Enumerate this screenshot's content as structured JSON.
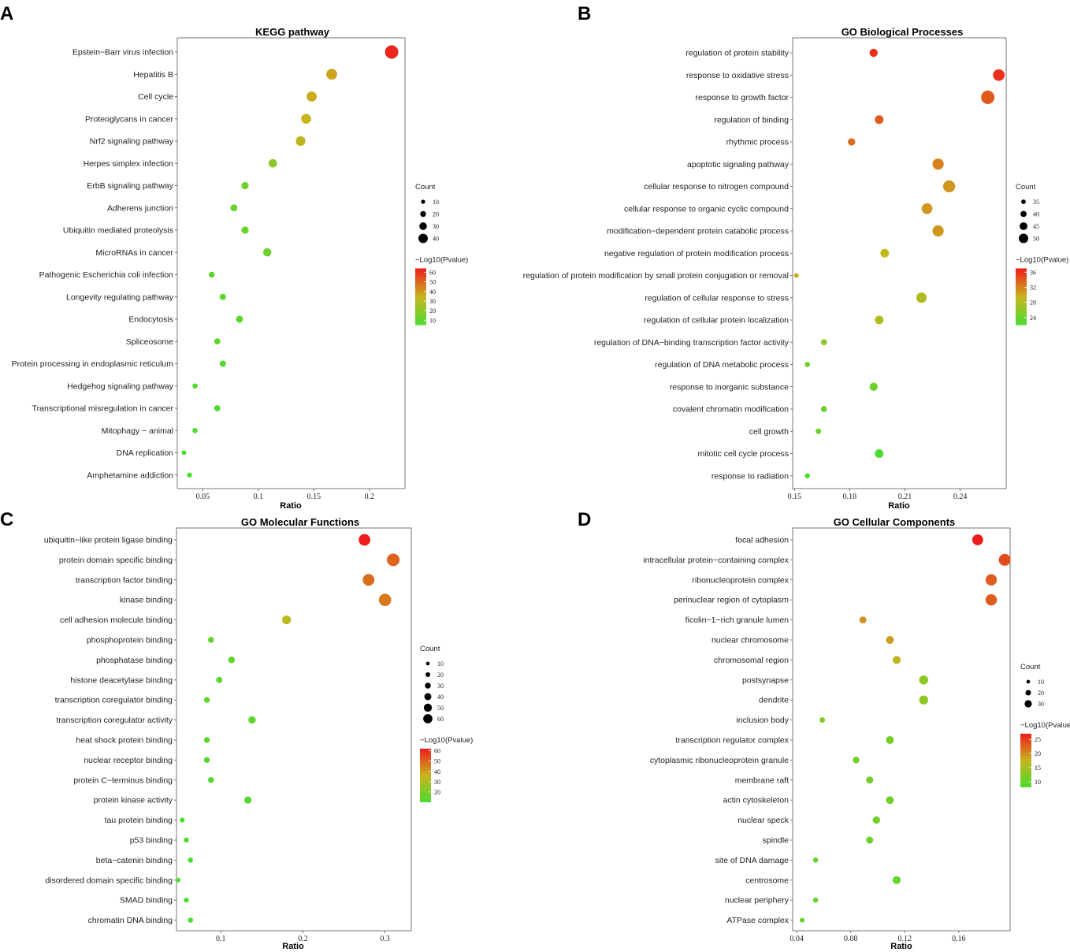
{
  "chart_data": [
    {
      "type": "scatter",
      "panel": "A",
      "title": "KEGG pathway",
      "xlabel": "Ratio",
      "ylabel": "",
      "xlim": [
        0.027,
        0.232
      ],
      "xticks": [
        "0.05",
        "0.1",
        "0.15",
        "0.2"
      ],
      "xtick_values": [
        0.05,
        0.1,
        0.15,
        0.2
      ],
      "categories": [
        "Epstein−Barr virus infection",
        "Hepatitis B",
        "Cell cycle",
        "Proteoglycans in cancer",
        "Nrf2 signaling pathway",
        "Herpes simplex infection",
        "ErbB signaling pathway",
        "Adherens junction",
        "Ubiquitin mediated proteolysis",
        "MicroRNAs in cancer",
        "Pathogenic Escherichia coli infection",
        "Longevity regulating pathway",
        "Endocytosis",
        "Spliceosome",
        "Protein processing in endoplasmic reticulum",
        "Hedgehog signaling pathway",
        "Transcriptional misregulation in cancer",
        "Mitophagy − animal",
        "DNA replication",
        "Amphetamine addiction"
      ],
      "x": [
        0.22,
        0.166,
        0.148,
        0.143,
        0.138,
        0.113,
        0.088,
        0.078,
        0.088,
        0.108,
        0.058,
        0.068,
        0.083,
        0.063,
        0.068,
        0.043,
        0.063,
        0.043,
        0.033,
        0.038
      ],
      "count": [
        44,
        33,
        30,
        29,
        28,
        23,
        18,
        16,
        18,
        22,
        12,
        14,
        17,
        13,
        14,
        9,
        13,
        9,
        7,
        8
      ],
      "neglog10p": [
        62,
        38,
        36,
        34,
        32,
        20,
        14,
        12,
        12,
        12,
        8,
        8,
        8,
        8,
        8,
        6,
        6,
        6,
        6,
        6
      ],
      "size_legend": {
        "title": "Count",
        "values": [
          10,
          20,
          30,
          40
        ]
      },
      "color_legend": {
        "title": "−Log10(Pvalue)",
        "labels": [
          60,
          50,
          40,
          30,
          20,
          10
        ],
        "range": [
          5,
          64
        ]
      }
    },
    {
      "type": "scatter",
      "panel": "B",
      "title": "GO Biological Processes",
      "xlabel": "Ratio",
      "ylabel": "",
      "xlim": [
        0.149,
        0.265
      ],
      "xticks": [
        "0.15",
        "0.18",
        "0.21",
        "0.24"
      ],
      "xtick_values": [
        0.15,
        0.18,
        0.21,
        0.24
      ],
      "categories": [
        "regulation of protein stability",
        "response to oxidative stress",
        "response to growth factor",
        "regulation of binding",
        "rhythmic process",
        "apoptotic signaling pathway",
        "cellular response to nitrogen compound",
        "cellular response to organic cyclic compound",
        "modification−dependent protein catabolic process",
        "negative regulation of protein modification process",
        "regulation of protein modification by small protein conjugation or removal",
        "regulation of cellular response to stress",
        "regulation of cellular protein localization",
        "regulation of DNA−binding transcription factor activity",
        "regulation of DNA metabolic process",
        "response to inorganic substance",
        "covalent chromatin modification",
        "cell growth",
        "mitotic cell cycle process",
        "response to radiation"
      ],
      "x": [
        0.193,
        0.261,
        0.255,
        0.196,
        0.181,
        0.228,
        0.234,
        0.222,
        0.228,
        0.199,
        0.151,
        0.219,
        0.196,
        0.166,
        0.157,
        0.193,
        0.166,
        0.163,
        0.196,
        0.157
      ],
      "count": [
        40,
        48,
        52,
        41,
        38,
        47,
        49,
        46,
        47,
        41,
        32,
        45,
        41,
        35,
        33,
        40,
        35,
        34,
        41,
        33
      ],
      "neglog10p": [
        36,
        36,
        34,
        34,
        33,
        32,
        31,
        31,
        31,
        29,
        30,
        28,
        28,
        26,
        24,
        24,
        24,
        24,
        22,
        22
      ],
      "size_legend": {
        "title": "Count",
        "values": [
          35,
          40,
          45,
          50
        ]
      },
      "color_legend": {
        "title": "−Log10(Pvalue)",
        "labels": [
          36,
          32,
          28,
          24
        ],
        "range": [
          22,
          37
        ]
      }
    },
    {
      "type": "scatter",
      "panel": "C",
      "title": "GO Molecular Functions",
      "xlabel": "Ratio",
      "ylabel": "",
      "xlim": [
        0.046,
        0.332
      ],
      "xticks": [
        "0.1",
        "0.2",
        "0.3"
      ],
      "xtick_values": [
        0.1,
        0.2,
        0.3
      ],
      "categories": [
        "ubiquitin−like protein ligase binding",
        "protein domain specific binding",
        "transcription factor binding",
        "kinase binding",
        "cell adhesion molecule binding",
        "phosphoprotein binding",
        "phosphatase binding",
        "histone deacetylase binding",
        "transcription coregulator binding",
        "transcription coregulator activity",
        "heat shock protein binding",
        "nuclear receptor binding",
        "protein C−terminus binding",
        "protein kinase activity",
        "tau protein binding",
        "p53 binding",
        "beta−catenin binding",
        "disordered domain specific binding",
        "SMAD binding",
        "chromatin DNA binding"
      ],
      "x": [
        0.275,
        0.31,
        0.28,
        0.3,
        0.18,
        0.088,
        0.113,
        0.098,
        0.083,
        0.138,
        0.083,
        0.083,
        0.088,
        0.133,
        0.053,
        0.058,
        0.063,
        0.048,
        0.058,
        0.063
      ],
      "count": [
        55,
        62,
        56,
        60,
        36,
        17,
        22,
        19,
        16,
        27,
        16,
        16,
        17,
        26,
        10,
        11,
        12,
        9,
        11,
        12
      ],
      "neglog10p": [
        62,
        50,
        48,
        46,
        33,
        15,
        15,
        14,
        14,
        14,
        12,
        12,
        12,
        12,
        10,
        10,
        10,
        10,
        10,
        10
      ],
      "size_legend": {
        "title": "Count",
        "values": [
          10,
          20,
          30,
          40,
          50,
          60
        ]
      },
      "color_legend": {
        "title": "−Log10(Pvalue)",
        "labels": [
          60,
          50,
          40,
          30,
          20
        ],
        "range": [
          10,
          62
        ]
      }
    },
    {
      "type": "scatter",
      "panel": "D",
      "title": "GO Cellular Components",
      "xlabel": "Ratio",
      "ylabel": "",
      "xlim": [
        0.037,
        0.198
      ],
      "xticks": [
        "0.04",
        "0.08",
        "0.12",
        "0.16"
      ],
      "xtick_values": [
        0.04,
        0.08,
        0.12,
        0.16
      ],
      "categories": [
        "focal adhesion",
        "intracellular protein−containing complex",
        "ribonucleoprotein complex",
        "perinuclear region of cytoplasm",
        "ficolin−1−rich granule lumen",
        "nuclear chromosome",
        "chromosomal region",
        "postsynapse",
        "dendrite",
        "inclusion body",
        "transcription regulator complex",
        "cytoplasmic ribonucleoprotein granule",
        "membrane raft",
        "actin cytoskeleton",
        "nuclear speck",
        "spindle",
        "site of DNA damage",
        "centrosome",
        "nuclear periphery",
        "ATPase complex"
      ],
      "x": [
        0.174,
        0.194,
        0.184,
        0.184,
        0.089,
        0.109,
        0.114,
        0.134,
        0.134,
        0.059,
        0.109,
        0.084,
        0.094,
        0.109,
        0.099,
        0.094,
        0.054,
        0.114,
        0.054,
        0.044
      ],
      "count": [
        35,
        39,
        37,
        37,
        18,
        22,
        23,
        27,
        27,
        12,
        22,
        17,
        19,
        22,
        20,
        19,
        11,
        23,
        11,
        9
      ],
      "neglog10p": [
        27,
        24,
        23,
        23,
        20,
        19,
        17,
        13,
        13,
        12,
        11,
        11,
        11,
        11,
        11,
        11,
        10,
        10,
        10,
        10
      ],
      "size_legend": {
        "title": "Count",
        "values": [
          10,
          20,
          30
        ]
      },
      "color_legend": {
        "title": "−Log10(Pvalue)",
        "labels": [
          25,
          20,
          15,
          10
        ],
        "range": [
          8,
          27
        ]
      }
    }
  ]
}
